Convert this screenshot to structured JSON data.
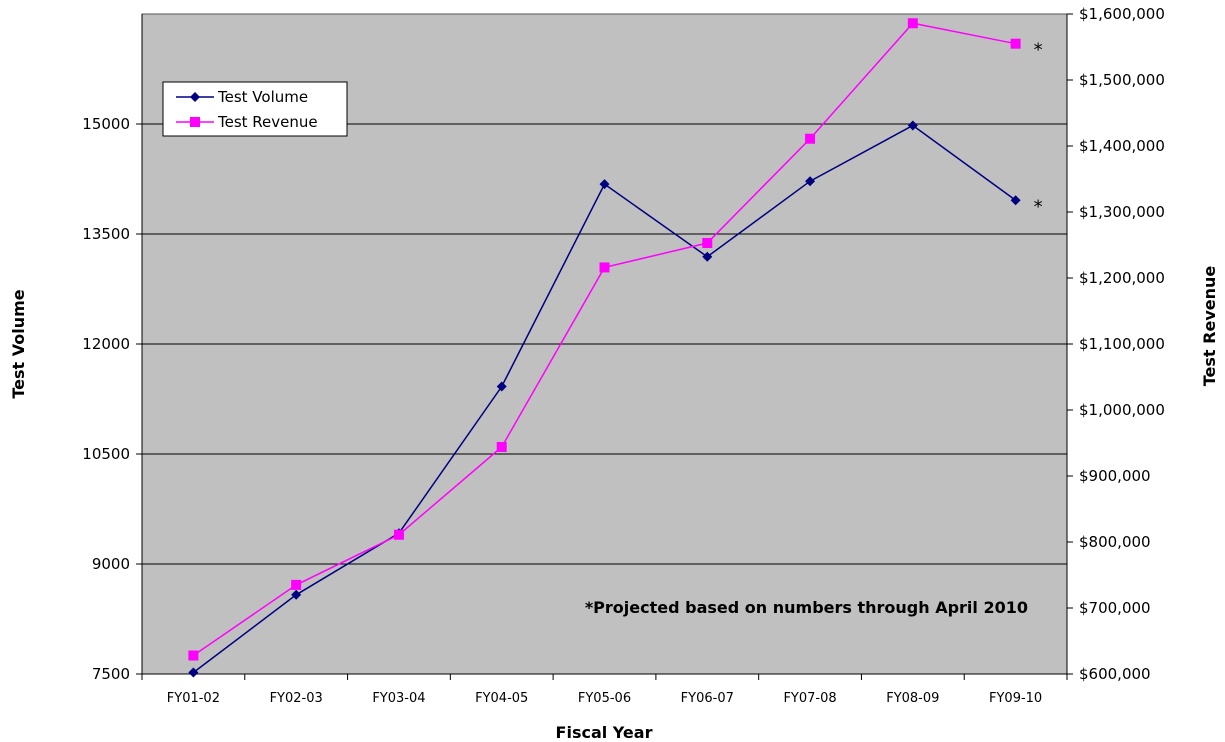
{
  "chart_data": {
    "type": "line",
    "categories": [
      "FY01-02",
      "FY02-03",
      "FY03-04",
      "FY04-05",
      "FY05-06",
      "FY06-07",
      "FY07-08",
      "FY08-09",
      "FY09-10"
    ],
    "series": [
      {
        "name": "Test Volume",
        "axis": "left",
        "color": "#000080",
        "marker": "diamond",
        "values": [
          7520,
          8580,
          9420,
          11420,
          14180,
          13190,
          14220,
          14980,
          13960
        ]
      },
      {
        "name": "Test Revenue",
        "axis": "right",
        "color": "#ff00ff",
        "marker": "square",
        "values": [
          628000,
          735000,
          811000,
          944000,
          1216000,
          1253000,
          1411000,
          1586000,
          1555000
        ]
      }
    ],
    "xlabel": "Fiscal Year",
    "ylabel": "Test Volume",
    "y2label": "Test Revenue",
    "ylim": [
      7500,
      16500
    ],
    "y2lim": [
      600000,
      1600000
    ],
    "yticks": [
      "7500",
      "9000",
      "10500",
      "12000",
      "13500",
      "15000"
    ],
    "y2ticks": [
      "$600,000",
      "$700,000",
      "$800,000",
      "$900,000",
      "$1,000,000",
      "$1,100,000",
      "$1,200,000",
      "$1,300,000",
      "$1,400,000",
      "$1,500,000",
      "$1,600,000"
    ],
    "grid": true,
    "legend": "top-left",
    "projected_marker": "*",
    "annotation": "*Projected based on numbers through April 2010",
    "plot_background": "#c0c0c0"
  }
}
